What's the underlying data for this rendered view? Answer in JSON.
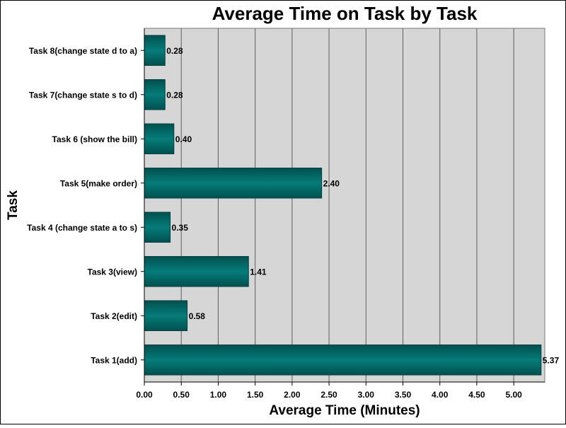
{
  "chart_data": {
    "type": "bar",
    "orientation": "horizontal",
    "title": "Average Time on Task by Task",
    "xlabel": "Average Time (Minutes)",
    "ylabel": "Task",
    "categories": [
      "Task 8(change state d to a)",
      "Task 7(change state s to d)",
      "Task 6 (show the bill)",
      "Task 5(make order)",
      "Task 4 (change state a to s)",
      "Task 3(view)",
      "Task 2(edit)",
      "Task 1(add)"
    ],
    "values": [
      0.28,
      0.28,
      0.4,
      2.4,
      0.35,
      1.41,
      0.58,
      5.37
    ],
    "value_labels": [
      "0.28",
      "0.28",
      "0.40",
      "2.40",
      "0.35",
      "1.41",
      "0.58",
      "5.37"
    ],
    "xlim": [
      0,
      5.42
    ],
    "x_ticks": [
      0,
      0.5,
      1,
      1.5,
      2,
      2.5,
      3,
      3.5,
      4,
      4.5,
      5
    ],
    "x_tick_labels": [
      "0.00",
      "0.50",
      "1.00",
      "1.50",
      "2.00",
      "2.50",
      "3.00",
      "3.50",
      "4.00",
      "4.50",
      "5.00"
    ],
    "grid": "vertical",
    "legend": "none",
    "colors": {
      "bar_edge": "#00504f",
      "bar_mid": "#067c79",
      "plot_background": "#d6d6d6",
      "grid": "#5e5e5e"
    }
  }
}
